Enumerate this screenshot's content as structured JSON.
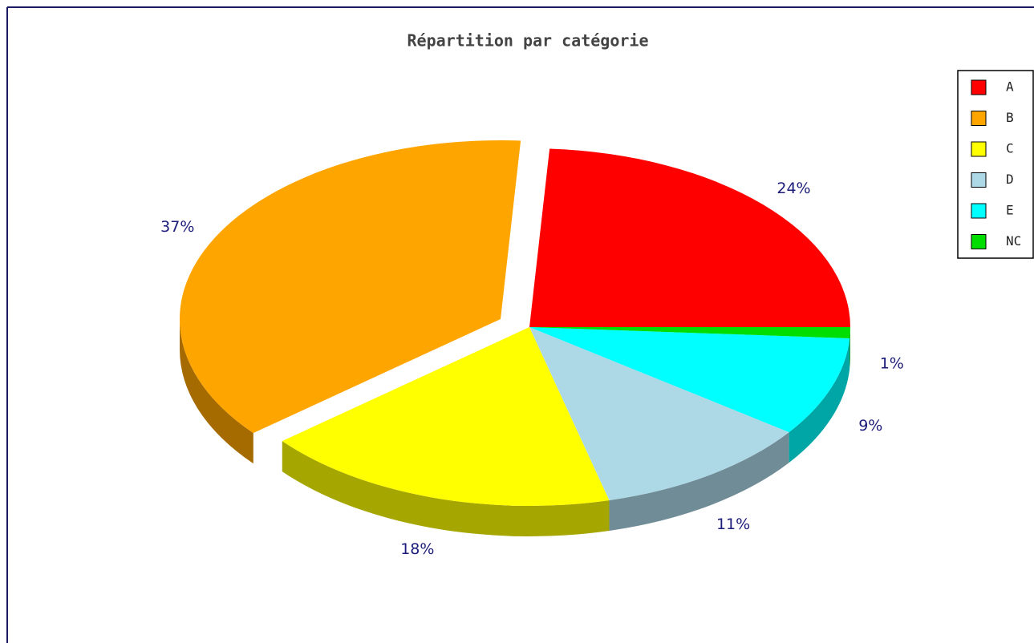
{
  "chart_data": {
    "type": "pie3d",
    "title": "Répartition par catégorie",
    "categories": [
      "A",
      "B",
      "C",
      "D",
      "E",
      "NC"
    ],
    "values": [
      24,
      37,
      18,
      11,
      9,
      1
    ],
    "value_labels": [
      "24%",
      "37%",
      "18%",
      "11%",
      "9%",
      "1%"
    ],
    "colors": [
      "#ff0000",
      "#ffa500",
      "#ffff00",
      "#add8e6",
      "#00ffff",
      "#00dd00"
    ],
    "legend": "right"
  }
}
